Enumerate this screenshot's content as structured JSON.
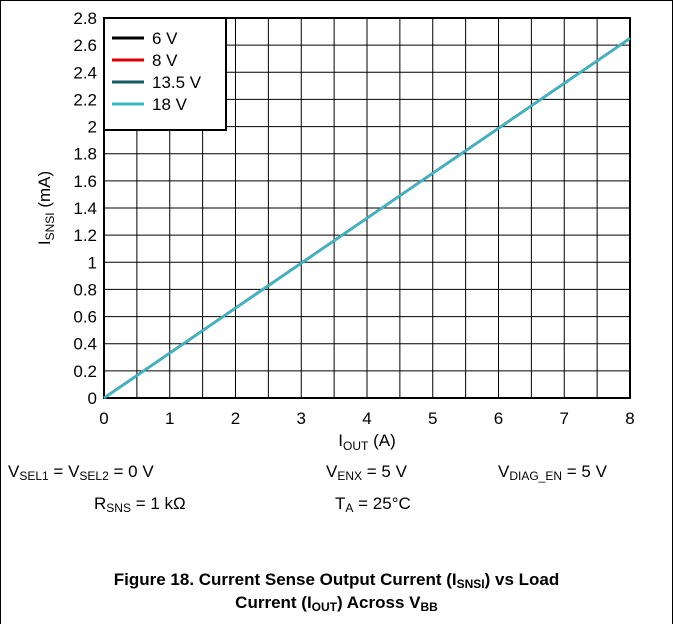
{
  "chart_data": {
    "type": "line",
    "xlabel": {
      "main": "I",
      "sub": "OUT",
      "unit": " (A)"
    },
    "ylabel": {
      "main": "I",
      "sub": "SNSI",
      "unit": " (mA)"
    },
    "xlim": [
      0,
      8
    ],
    "ylim": [
      0,
      2.8
    ],
    "xticks": [
      "0",
      "1",
      "2",
      "3",
      "4",
      "5",
      "6",
      "7",
      "8"
    ],
    "yticks": [
      "0",
      "0.2",
      "0.4",
      "0.6",
      "0.8",
      "1",
      "1.2",
      "1.4",
      "1.6",
      "1.8",
      "2",
      "2.2",
      "2.4",
      "2.6",
      "2.8"
    ],
    "grid": true,
    "minor_x_grid": true,
    "legend_position": "top-left",
    "series": [
      {
        "name": "6 V",
        "color": "#000000",
        "x": [
          0,
          8
        ],
        "y": [
          0,
          2.65
        ]
      },
      {
        "name": "8 V",
        "color": "#e00000",
        "x": [
          0,
          8
        ],
        "y": [
          0,
          2.65
        ]
      },
      {
        "name": "13.5 V",
        "color": "#1a5a6e",
        "x": [
          0,
          8
        ],
        "y": [
          0,
          2.65
        ]
      },
      {
        "name": "18 V",
        "color": "#3bb8c8",
        "x": [
          0,
          8
        ],
        "y": [
          0,
          2.65
        ]
      }
    ]
  },
  "conditions": {
    "vsel": {
      "a": "V",
      "a_sub": "SEL1",
      "b": " = V",
      "b_sub": "SEL2",
      "tail": " = 0 V"
    },
    "venx": {
      "a": "V",
      "a_sub": "ENX",
      "tail": " = 5 V"
    },
    "vdiag": {
      "a": "V",
      "a_sub": "DIAG_EN",
      "tail": " = 5 V"
    },
    "rsns": {
      "a": "R",
      "a_sub": "SNS",
      "tail": " = 1 kΩ"
    },
    "ta": {
      "a": "T",
      "a_sub": "A",
      "tail": " = 25°C"
    }
  },
  "caption": {
    "line1_a": "Figure 18. Current Sense Output Current (I",
    "line1_sub": "SNSI",
    "line1_b": ") vs Load",
    "line2_a": "Current (I",
    "line2_sub": "OUT",
    "line2_b": ") Across V",
    "line2_sub2": "BB"
  }
}
